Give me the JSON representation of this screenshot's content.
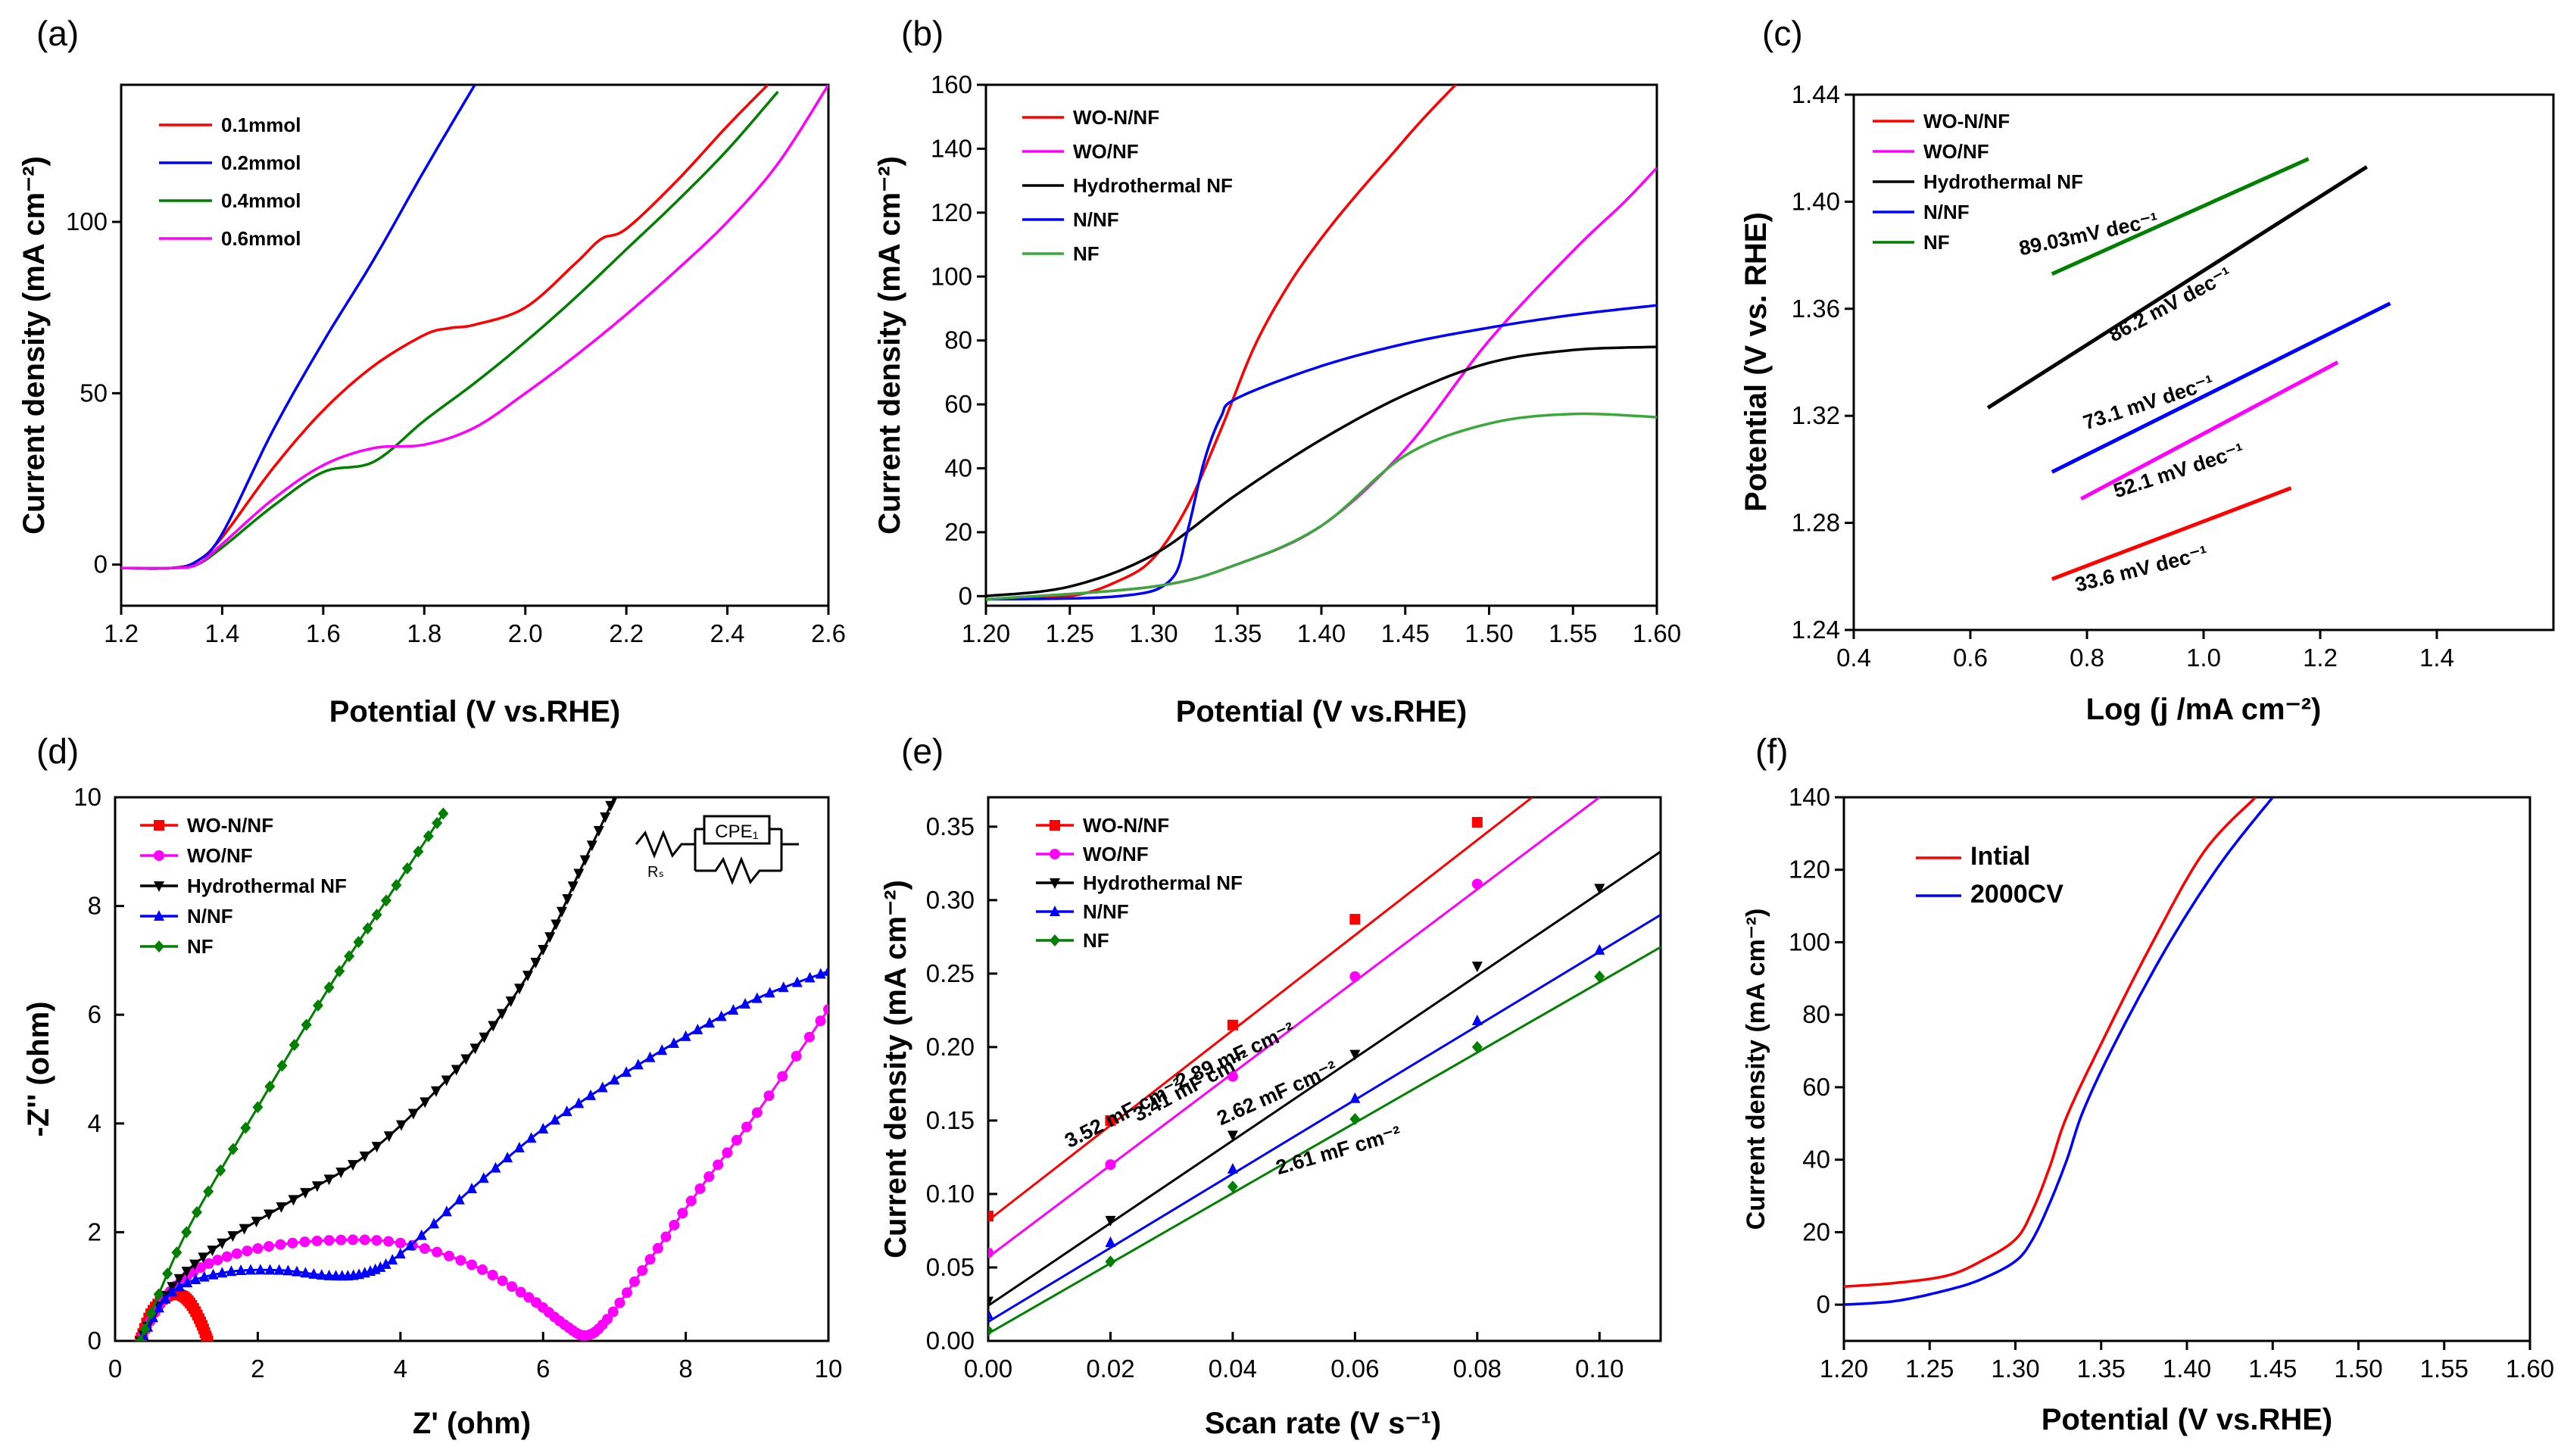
{
  "chart_data": [
    {
      "panel": "(a)",
      "type": "line",
      "xlabel": "Potential (V vs.RHE)",
      "ylabel": "Current density (mA cm⁻²)",
      "xlim": [
        1.2,
        2.6
      ],
      "ylim": [
        -12,
        140
      ],
      "xticks": [
        1.2,
        1.4,
        1.6,
        1.8,
        2.0,
        2.2,
        2.4,
        2.6
      ],
      "xtick_labels": [
        "1.2",
        "1.4",
        "1.6",
        "1.8",
        "2.0",
        "2.2",
        "2.4",
        "2.6"
      ],
      "yticks": [
        0,
        50,
        100
      ],
      "ytick_labels": [
        "0",
        "50",
        "100"
      ],
      "legend": "top-left",
      "series": [
        {
          "name": "0.1mmol",
          "color": "#ff0000",
          "x": [
            1.2,
            1.3,
            1.35,
            1.4,
            1.5,
            1.6,
            1.7,
            1.8,
            1.85,
            1.9,
            2.0,
            2.1,
            2.15,
            2.2,
            2.3,
            2.4,
            2.48
          ],
          "y": [
            -1,
            -1,
            1,
            8,
            28,
            45,
            58,
            67,
            69,
            70,
            75,
            88,
            95,
            98,
            112,
            128,
            140
          ]
        },
        {
          "name": "0.2mmol",
          "color": "#0000ff",
          "x": [
            1.2,
            1.3,
            1.35,
            1.4,
            1.5,
            1.6,
            1.7,
            1.8,
            1.9
          ],
          "y": [
            -1,
            -1,
            1,
            9,
            39,
            65,
            89,
            115,
            140
          ]
        },
        {
          "name": "0.4mmol",
          "color": "#008000",
          "x": [
            1.2,
            1.3,
            1.35,
            1.4,
            1.5,
            1.6,
            1.7,
            1.8,
            1.9,
            2.0,
            2.1,
            2.2,
            2.3,
            2.4,
            2.5
          ],
          "y": [
            -1,
            -1,
            0,
            5,
            17,
            27,
            30,
            42,
            53,
            65,
            78,
            92,
            106,
            121,
            138
          ]
        },
        {
          "name": "0.6mmol",
          "color": "#ff00ff",
          "x": [
            1.2,
            1.3,
            1.35,
            1.4,
            1.5,
            1.6,
            1.7,
            1.8,
            1.9,
            2.0,
            2.1,
            2.2,
            2.3,
            2.4,
            2.5,
            2.6
          ],
          "y": [
            -1,
            -1,
            0,
            6,
            19,
            29,
            34,
            35,
            40,
            50,
            61,
            73,
            86,
            100,
            117,
            140
          ]
        }
      ]
    },
    {
      "panel": "(b)",
      "type": "line",
      "xlabel": "Potential (V vs.RHE)",
      "ylabel": "Current density (mA cm⁻²)",
      "xlim": [
        1.2,
        1.6
      ],
      "ylim": [
        -3,
        160
      ],
      "xticks": [
        1.2,
        1.25,
        1.3,
        1.35,
        1.4,
        1.45,
        1.5,
        1.55,
        1.6
      ],
      "xtick_labels": [
        "1.20",
        "1.25",
        "1.30",
        "1.35",
        "1.40",
        "1.45",
        "1.50",
        "1.55",
        "1.60"
      ],
      "yticks": [
        0,
        20,
        40,
        60,
        80,
        100,
        120,
        140,
        160
      ],
      "ytick_labels": [
        "0",
        "20",
        "40",
        "60",
        "80",
        "100",
        "120",
        "140",
        "160"
      ],
      "legend": "top-left",
      "series": [
        {
          "name": "WO-N/NF",
          "color": "#ff0000",
          "x": [
            1.2,
            1.25,
            1.28,
            1.3,
            1.32,
            1.34,
            1.36,
            1.38,
            1.4,
            1.42,
            1.44,
            1.46,
            1.48
          ],
          "y": [
            -1,
            0,
            5,
            12,
            28,
            52,
            78,
            97,
            112,
            125,
            137,
            149,
            160
          ]
        },
        {
          "name": "WO/NF",
          "color": "#ff00ff",
          "x": [
            1.2,
            1.3,
            1.35,
            1.4,
            1.45,
            1.5,
            1.55,
            1.58,
            1.6
          ],
          "y": [
            -1,
            3,
            10,
            22,
            46,
            80,
            108,
            123,
            134
          ]
        },
        {
          "name": "Hydrothermal NF",
          "color": "#000000",
          "x": [
            1.2,
            1.25,
            1.3,
            1.35,
            1.4,
            1.45,
            1.5,
            1.55,
            1.6
          ],
          "y": [
            0,
            3,
            13,
            32,
            49,
            63,
            73,
            77,
            78
          ]
        },
        {
          "name": "N/NF",
          "color": "#0000ff",
          "x": [
            1.2,
            1.28,
            1.31,
            1.32,
            1.33,
            1.34,
            1.35,
            1.4,
            1.45,
            1.5,
            1.55,
            1.6
          ],
          "y": [
            -1,
            0,
            5,
            20,
            42,
            56,
            62,
            72,
            79,
            84,
            88,
            91
          ]
        },
        {
          "name": "NF",
          "color": "#3aa83a",
          "x": [
            1.2,
            1.3,
            1.35,
            1.4,
            1.45,
            1.5,
            1.55,
            1.6
          ],
          "y": [
            -1,
            3,
            10,
            22,
            44,
            54,
            57,
            56
          ]
        }
      ]
    },
    {
      "panel": "(c)",
      "type": "line",
      "xlabel": "Log (j /mA cm⁻²)",
      "ylabel": "Potential (V vs. RHE)",
      "xlim": [
        0.4,
        1.6
      ],
      "ylim": [
        1.24,
        1.44
      ],
      "xticks": [
        0.4,
        0.6,
        0.8,
        1.0,
        1.2,
        1.4
      ],
      "xtick_labels": [
        "0.4",
        "0.6",
        "0.8",
        "1.0",
        "1.2",
        "1.4"
      ],
      "yticks": [
        1.24,
        1.28,
        1.32,
        1.36,
        1.4,
        1.44
      ],
      "ytick_labels": [
        "1.24",
        "1.28",
        "1.32",
        "1.36",
        "1.40",
        "1.44"
      ],
      "legend": "top-left",
      "series": [
        {
          "name": "WO-N/NF",
          "color": "#ff0000",
          "x": [
            0.74,
            1.15
          ],
          "y": [
            1.259,
            1.293
          ],
          "label": "33.6 mV dec⁻¹"
        },
        {
          "name": "WO/NF",
          "color": "#ff00ff",
          "x": [
            0.79,
            1.23
          ],
          "y": [
            1.289,
            1.34
          ],
          "label": "52.1 mV dec⁻¹"
        },
        {
          "name": "Hydrothermal NF",
          "color": "#000000",
          "x": [
            0.63,
            1.28
          ],
          "y": [
            1.323,
            1.413
          ],
          "label": "86.2 mV dec⁻¹"
        },
        {
          "name": "N/NF",
          "color": "#0000ff",
          "x": [
            0.74,
            1.32
          ],
          "y": [
            1.299,
            1.362
          ],
          "label": "73.1 mV dec⁻¹"
        },
        {
          "name": "NF",
          "color": "#008000",
          "x": [
            0.74,
            1.18
          ],
          "y": [
            1.373,
            1.416
          ],
          "label": "89.03mV dec⁻¹"
        }
      ]
    },
    {
      "panel": "(d)",
      "type": "scatter",
      "xlabel": "Z' (ohm)",
      "ylabel": "-Z'' (ohm)",
      "xlim": [
        0,
        10
      ],
      "ylim": [
        0,
        10
      ],
      "xticks": [
        0,
        2,
        4,
        6,
        8,
        10
      ],
      "xtick_labels": [
        "0",
        "2",
        "4",
        "6",
        "8",
        "10"
      ],
      "yticks": [
        0,
        2,
        4,
        6,
        8,
        10
      ],
      "ytick_labels": [
        "0",
        "2",
        "4",
        "6",
        "8",
        "10"
      ],
      "legend": "top-left",
      "inset_labels": [
        "CPE₁",
        "Rₛ"
      ],
      "series": [
        {
          "name": "WO-N/NF",
          "color": "#ff0000",
          "marker": "square",
          "x": [
            0.35,
            0.5,
            0.7,
            0.9,
            1.05,
            1.2,
            1.3
          ],
          "y": [
            0,
            0.5,
            0.8,
            0.85,
            0.7,
            0.35,
            0
          ]
        },
        {
          "name": "WO/NF",
          "color": "#ff00ff",
          "marker": "circle",
          "x": [
            0.35,
            0.7,
            1.2,
            2,
            3,
            4,
            5,
            5.8,
            6.3,
            6.6,
            6.9,
            7.5,
            8.2,
            9,
            10
          ],
          "y": [
            0,
            0.8,
            1.35,
            1.7,
            1.85,
            1.8,
            1.4,
            0.8,
            0.3,
            0.1,
            0.4,
            1.5,
            2.8,
            4.2,
            6.1
          ]
        },
        {
          "name": "Hydrothermal NF",
          "color": "#000000",
          "marker": "triangle-down",
          "x": [
            0.35,
            0.8,
            1.5,
            2.5,
            3.5,
            4.5,
            5.3,
            6,
            6.5,
            7
          ],
          "y": [
            0,
            1,
            1.8,
            2.6,
            3.4,
            4.6,
            5.8,
            7.2,
            8.6,
            10
          ]
        },
        {
          "name": "N/NF",
          "color": "#0000ff",
          "marker": "triangle-up",
          "x": [
            0.35,
            0.8,
            1.5,
            2.3,
            3,
            3.5,
            4,
            5,
            6,
            7,
            8,
            9,
            10
          ],
          "y": [
            0,
            0.9,
            1.25,
            1.3,
            1.2,
            1.25,
            1.6,
            2.8,
            3.9,
            4.8,
            5.6,
            6.3,
            6.8
          ]
        },
        {
          "name": "NF",
          "color": "#008000",
          "marker": "diamond",
          "x": [
            0.35,
            1,
            2,
            3,
            3.8,
            4.6
          ],
          "y": [
            0,
            2,
            4.3,
            6.5,
            8.1,
            9.7
          ]
        }
      ]
    },
    {
      "panel": "(e)",
      "type": "scatter",
      "xlabel": "Scan rate (V s⁻¹)",
      "ylabel": "Current density (mA cm⁻²)",
      "xlim": [
        0,
        0.11
      ],
      "ylim": [
        0,
        0.37
      ],
      "xticks": [
        0,
        0.02,
        0.04,
        0.06,
        0.08,
        0.1
      ],
      "xtick_labels": [
        "0.00",
        "0.02",
        "0.04",
        "0.06",
        "0.08",
        "0.10"
      ],
      "yticks": [
        0,
        0.05,
        0.1,
        0.15,
        0.2,
        0.25,
        0.3,
        0.35
      ],
      "ytick_labels": [
        "0.00",
        "0.05",
        "0.10",
        "0.15",
        "0.20",
        "0.25",
        "0.30",
        "0.35"
      ],
      "legend": "top-left",
      "series": [
        {
          "name": "WO-N/NF",
          "color": "#ff0000",
          "marker": "square",
          "x": [
            0,
            0.02,
            0.04,
            0.06,
            0.08
          ],
          "y": [
            0.085,
            0.15,
            0.215,
            0.287,
            0.353
          ],
          "fit": [
            [
              0,
              0.082
            ],
            [
              0.089,
              0.37
            ]
          ],
          "label": "3.52 mF cm⁻²"
        },
        {
          "name": "WO/NF",
          "color": "#ff00ff",
          "marker": "circle",
          "x": [
            0,
            0.02,
            0.04,
            0.06,
            0.08
          ],
          "y": [
            0.06,
            0.12,
            0.18,
            0.248,
            0.311
          ],
          "fit": [
            [
              0,
              0.057
            ],
            [
              0.1,
              0.37
            ]
          ],
          "label": "3.41 mF cm⁻²"
        },
        {
          "name": "Hydrothermal NF",
          "color": "#000000",
          "marker": "triangle-down",
          "x": [
            0,
            0.02,
            0.04,
            0.06,
            0.08,
            0.1
          ],
          "y": [
            0.027,
            0.082,
            0.14,
            0.195,
            0.255,
            0.308
          ],
          "fit": [
            [
              0,
              0.024
            ],
            [
              0.11,
              0.333
            ]
          ],
          "label": "2.89 mF cm⁻²"
        },
        {
          "name": "N/NF",
          "color": "#0000ff",
          "marker": "triangle-up",
          "x": [
            0,
            0.02,
            0.04,
            0.06,
            0.08,
            0.1
          ],
          "y": [
            0.018,
            0.067,
            0.117,
            0.165,
            0.218,
            0.266
          ],
          "fit": [
            [
              0,
              0.013
            ],
            [
              0.11,
              0.29
            ]
          ],
          "label": "2.62 mF cm⁻²"
        },
        {
          "name": "NF",
          "color": "#008000",
          "marker": "diamond",
          "x": [
            0,
            0.02,
            0.04,
            0.06,
            0.08,
            0.1
          ],
          "y": [
            0.007,
            0.054,
            0.105,
            0.151,
            0.2,
            0.248
          ],
          "fit": [
            [
              0,
              0.005
            ],
            [
              0.11,
              0.268
            ]
          ],
          "label": "2.61 mF cm⁻²"
        }
      ]
    },
    {
      "panel": "(f)",
      "type": "line",
      "xlabel": "Potential (V vs.RHE)",
      "ylabel": "Current density (mA cm⁻²)",
      "xlim": [
        1.2,
        1.6
      ],
      "ylim": [
        -10,
        140
      ],
      "xticks": [
        1.2,
        1.25,
        1.3,
        1.35,
        1.4,
        1.45,
        1.5,
        1.55,
        1.6
      ],
      "xtick_labels": [
        "1.20",
        "1.25",
        "1.30",
        "1.35",
        "1.40",
        "1.45",
        "1.50",
        "1.55",
        "1.60"
      ],
      "yticks": [
        0,
        20,
        40,
        60,
        80,
        100,
        120,
        140
      ],
      "ytick_labels": [
        "0",
        "20",
        "40",
        "60",
        "80",
        "100",
        "120",
        "140"
      ],
      "legend": "top-left",
      "series": [
        {
          "name": "Intial",
          "color": "#ff0000",
          "x": [
            1.2,
            1.23,
            1.26,
            1.28,
            1.3,
            1.31,
            1.32,
            1.33,
            1.35,
            1.38,
            1.41,
            1.44
          ],
          "y": [
            5,
            6,
            8,
            12,
            18,
            26,
            38,
            52,
            72,
            100,
            125,
            140
          ]
        },
        {
          "name": "2000CV",
          "color": "#0000ff",
          "x": [
            1.2,
            1.23,
            1.26,
            1.28,
            1.3,
            1.31,
            1.32,
            1.33,
            1.34,
            1.36,
            1.39,
            1.42,
            1.45
          ],
          "y": [
            0,
            1,
            4,
            7,
            12,
            18,
            28,
            40,
            54,
            74,
            100,
            122,
            140
          ]
        }
      ]
    }
  ]
}
